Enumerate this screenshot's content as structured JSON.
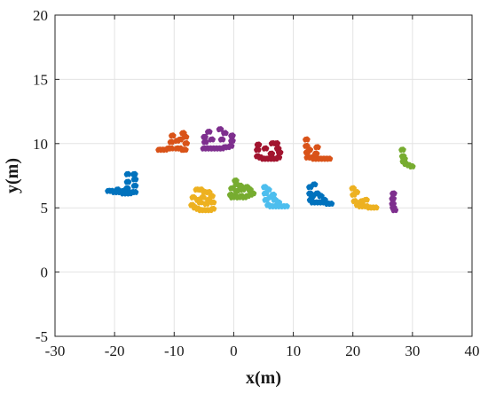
{
  "chart_data": {
    "type": "scatter",
    "title": "",
    "xlabel": "x(m)",
    "ylabel": "y(m)",
    "xlim": [
      -30,
      40
    ],
    "ylim": [
      -5,
      20
    ],
    "xticks": [
      -30,
      -20,
      -10,
      0,
      10,
      20,
      30,
      40
    ],
    "yticks": [
      -5,
      0,
      5,
      10,
      15,
      20
    ],
    "grid": true,
    "legend": "none",
    "series": [
      {
        "color": "#0072BD",
        "points": [
          [
            -21.0,
            6.3
          ],
          [
            -20.5,
            6.3
          ],
          [
            -20.0,
            6.2
          ],
          [
            -19.5,
            6.2
          ],
          [
            -19.0,
            6.2
          ],
          [
            -18.5,
            6.1
          ],
          [
            -18.0,
            6.1
          ],
          [
            -17.5,
            6.1
          ],
          [
            -17.0,
            6.2
          ],
          [
            -16.6,
            6.2
          ],
          [
            -16.6,
            6.7
          ],
          [
            -16.6,
            7.2
          ],
          [
            -16.7,
            7.6
          ],
          [
            -17.8,
            7.6
          ],
          [
            -17.8,
            7.0
          ],
          [
            -17.9,
            6.5
          ],
          [
            -19.5,
            6.4
          ],
          [
            -18.5,
            6.3
          ]
        ]
      },
      {
        "color": "#D95319",
        "points": [
          [
            -12.5,
            9.5
          ],
          [
            -12.0,
            9.5
          ],
          [
            -11.5,
            9.5
          ],
          [
            -11.0,
            9.6
          ],
          [
            -10.5,
            9.6
          ],
          [
            -10.5,
            10.1
          ],
          [
            -10.3,
            10.6
          ],
          [
            -9.5,
            9.6
          ],
          [
            -9.0,
            9.6
          ],
          [
            -8.5,
            9.5
          ],
          [
            -8.2,
            9.5
          ],
          [
            -8.0,
            10.0
          ],
          [
            -8.1,
            10.5
          ],
          [
            -8.5,
            10.8
          ],
          [
            -9.5,
            10.2
          ],
          [
            -9.0,
            10.3
          ]
        ]
      },
      {
        "color": "#7E2F8E",
        "points": [
          [
            -5.0,
            9.6
          ],
          [
            -4.5,
            9.6
          ],
          [
            -4.0,
            9.6
          ],
          [
            -3.5,
            9.6
          ],
          [
            -3.0,
            9.6
          ],
          [
            -2.5,
            9.6
          ],
          [
            -2.0,
            9.6
          ],
          [
            -1.5,
            9.7
          ],
          [
            -1.0,
            9.7
          ],
          [
            -0.5,
            9.8
          ],
          [
            -0.3,
            10.2
          ],
          [
            -0.3,
            10.6
          ],
          [
            -4.8,
            10.1
          ],
          [
            -4.2,
            10.9
          ],
          [
            -3.7,
            10.3
          ],
          [
            -2.0,
            10.3
          ],
          [
            -1.5,
            10.8
          ],
          [
            -2.3,
            11.1
          ],
          [
            -4.9,
            10.5
          ]
        ]
      },
      {
        "color": "#A2142F",
        "points": [
          [
            4.0,
            9.0
          ],
          [
            4.0,
            9.5
          ],
          [
            4.1,
            9.9
          ],
          [
            5.0,
            8.8
          ],
          [
            5.5,
            8.8
          ],
          [
            6.0,
            8.8
          ],
          [
            6.5,
            8.8
          ],
          [
            7.0,
            8.8
          ],
          [
            7.5,
            8.9
          ],
          [
            7.7,
            9.3
          ],
          [
            6.5,
            10.0
          ],
          [
            7.2,
            10.0
          ],
          [
            5.3,
            9.6
          ],
          [
            6.3,
            9.2
          ],
          [
            7.4,
            9.6
          ],
          [
            4.5,
            8.9
          ]
        ]
      },
      {
        "color": "#D95319",
        "points": [
          [
            12.2,
            10.3
          ],
          [
            12.2,
            9.8
          ],
          [
            12.3,
            9.3
          ],
          [
            12.4,
            8.9
          ],
          [
            13.0,
            8.9
          ],
          [
            13.5,
            8.8
          ],
          [
            14.0,
            8.8
          ],
          [
            14.5,
            8.8
          ],
          [
            15.0,
            8.8
          ],
          [
            15.5,
            8.8
          ],
          [
            16.0,
            8.8
          ],
          [
            13.8,
            9.2
          ],
          [
            14.0,
            9.7
          ],
          [
            12.7,
            9.5
          ]
        ]
      },
      {
        "color": "#77AC30",
        "points": [
          [
            28.3,
            9.5
          ],
          [
            28.4,
            9.0
          ],
          [
            28.5,
            8.6
          ],
          [
            28.9,
            8.4
          ],
          [
            29.4,
            8.3
          ],
          [
            29.9,
            8.2
          ],
          [
            28.6,
            8.8
          ]
        ]
      },
      {
        "color": "#0072BD",
        "points": [
          [
            12.8,
            6.6
          ],
          [
            12.8,
            6.1
          ],
          [
            12.9,
            5.6
          ],
          [
            13.3,
            5.4
          ],
          [
            13.8,
            5.4
          ],
          [
            14.3,
            5.4
          ],
          [
            14.8,
            5.4
          ],
          [
            15.3,
            5.4
          ],
          [
            15.8,
            5.3
          ],
          [
            16.3,
            5.3
          ],
          [
            13.5,
            6.8
          ],
          [
            14.0,
            6.1
          ],
          [
            14.6,
            5.9
          ],
          [
            15.2,
            5.6
          ],
          [
            13.2,
            5.9
          ]
        ]
      },
      {
        "color": "#4DBEEE",
        "points": [
          [
            5.2,
            6.6
          ],
          [
            5.3,
            6.1
          ],
          [
            5.4,
            5.6
          ],
          [
            5.8,
            5.2
          ],
          [
            6.3,
            5.1
          ],
          [
            6.8,
            5.1
          ],
          [
            7.3,
            5.1
          ],
          [
            7.8,
            5.1
          ],
          [
            8.3,
            5.1
          ],
          [
            8.8,
            5.1
          ],
          [
            6.2,
            5.8
          ],
          [
            6.9,
            5.6
          ],
          [
            7.5,
            5.4
          ],
          [
            5.8,
            6.4
          ],
          [
            6.6,
            6.0
          ]
        ]
      },
      {
        "color": "#77AC30",
        "points": [
          [
            -0.5,
            6.0
          ],
          [
            -0.2,
            5.8
          ],
          [
            0.3,
            5.9
          ],
          [
            0.8,
            5.8
          ],
          [
            1.3,
            5.9
          ],
          [
            1.8,
            5.8
          ],
          [
            2.3,
            5.9
          ],
          [
            2.8,
            6.0
          ],
          [
            3.2,
            6.1
          ],
          [
            -0.3,
            6.5
          ],
          [
            0.5,
            6.3
          ],
          [
            1.1,
            6.7
          ],
          [
            1.5,
            6.4
          ],
          [
            2.2,
            6.6
          ],
          [
            2.7,
            6.4
          ],
          [
            0.3,
            7.1
          ],
          [
            0.5,
            6.8
          ]
        ]
      },
      {
        "color": "#EDB120",
        "points": [
          [
            -7.0,
            5.2
          ],
          [
            -6.5,
            5.0
          ],
          [
            -6.0,
            4.9
          ],
          [
            -5.5,
            4.8
          ],
          [
            -5.0,
            4.8
          ],
          [
            -4.5,
            4.8
          ],
          [
            -4.0,
            4.8
          ],
          [
            -3.5,
            4.9
          ],
          [
            -3.5,
            5.4
          ],
          [
            -3.7,
            5.9
          ],
          [
            -4.2,
            6.2
          ],
          [
            -4.9,
            6.2
          ],
          [
            -5.5,
            6.4
          ],
          [
            -6.2,
            6.4
          ],
          [
            -6.8,
            5.8
          ],
          [
            -5.6,
            5.4
          ],
          [
            -4.6,
            5.3
          ],
          [
            -5.2,
            5.8
          ],
          [
            -6.0,
            5.6
          ],
          [
            -4.2,
            5.6
          ]
        ]
      },
      {
        "color": "#EDB120",
        "points": [
          [
            20.0,
            6.5
          ],
          [
            20.1,
            6.0
          ],
          [
            20.3,
            5.5
          ],
          [
            20.8,
            5.2
          ],
          [
            21.3,
            5.1
          ],
          [
            21.8,
            5.1
          ],
          [
            22.3,
            5.1
          ],
          [
            22.8,
            5.0
          ],
          [
            23.3,
            5.0
          ],
          [
            23.8,
            5.0
          ],
          [
            21.5,
            5.5
          ],
          [
            22.2,
            5.6
          ],
          [
            20.6,
            6.2
          ]
        ]
      },
      {
        "color": "#7E2F8E",
        "points": [
          [
            26.8,
            6.1
          ],
          [
            26.7,
            5.7
          ],
          [
            26.7,
            5.3
          ],
          [
            26.8,
            5.0
          ],
          [
            27.0,
            4.8
          ]
        ]
      }
    ]
  }
}
